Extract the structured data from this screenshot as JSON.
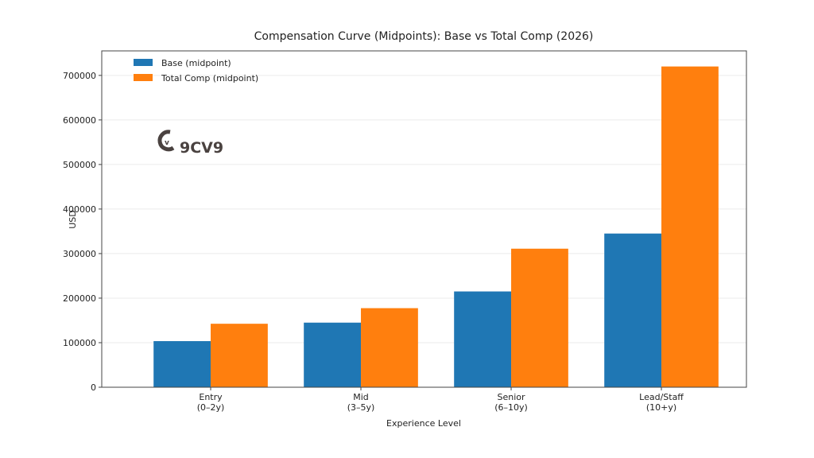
{
  "chart_data": {
    "type": "bar",
    "title": "Compensation Curve (Midpoints): Base vs Total Comp (2026)",
    "xlabel": "Experience Level",
    "ylabel": "USD",
    "categories": [
      [
        "Entry",
        "(0–2y)"
      ],
      [
        "Mid",
        "(3–5y)"
      ],
      [
        "Senior",
        "(6–10y)"
      ],
      [
        "Lead/Staff",
        "(10+y)"
      ]
    ],
    "series": [
      {
        "name": "Base (midpoint)",
        "color": "#1f77b4",
        "values": [
          103500,
          145000,
          215000,
          345000
        ]
      },
      {
        "name": "Total Comp (midpoint)",
        "color": "#ff7f0e",
        "values": [
          142500,
          177500,
          311000,
          720000
        ]
      }
    ],
    "yticks": [
      0,
      100000,
      200000,
      300000,
      400000,
      500000,
      600000,
      700000
    ],
    "ylim": [
      0,
      755000
    ],
    "grid": "horizontal",
    "legend_position": "top-left",
    "watermark": "9CV9"
  }
}
